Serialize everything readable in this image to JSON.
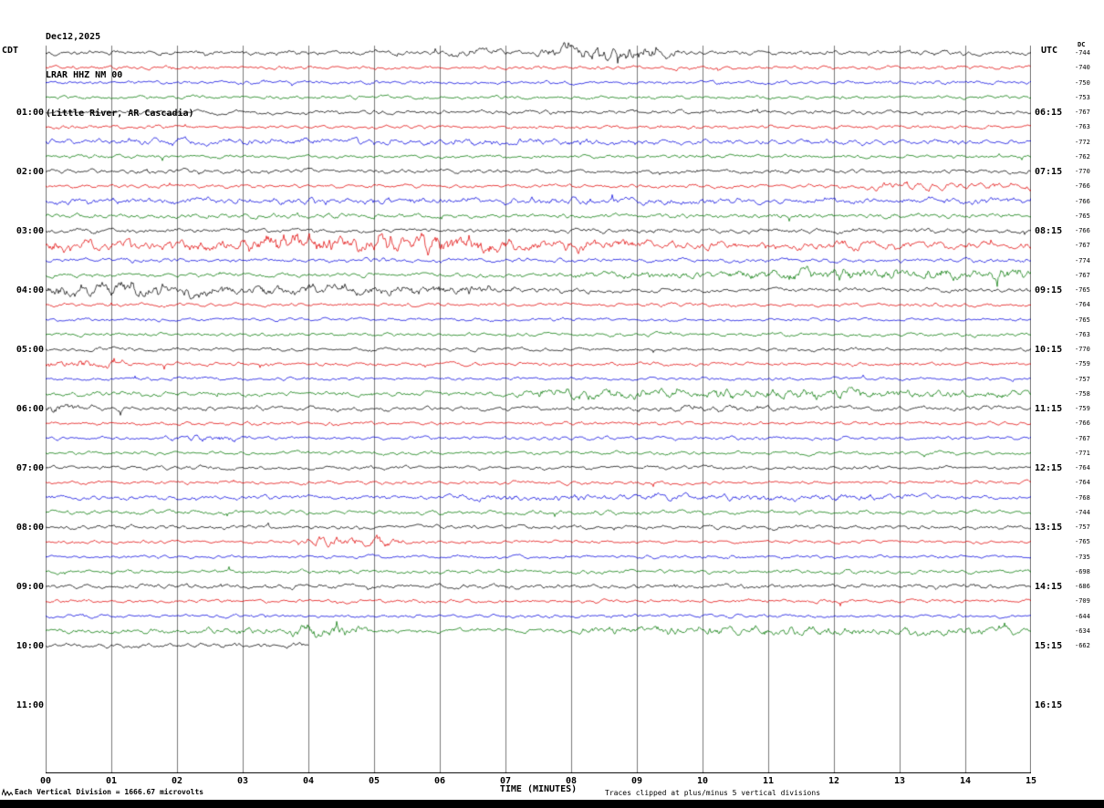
{
  "header": {
    "date": "Dec12,2025",
    "station": "LRAR HHZ NM 00",
    "location": "(Little River, AR Cascadia)"
  },
  "axes": {
    "left_label": "CDT",
    "right_label": "UTC",
    "dc_header": "DC",
    "left_times": [
      "01:00",
      "02:00",
      "03:00",
      "04:00",
      "05:00",
      "06:00",
      "07:00",
      "08:00",
      "09:00",
      "10:00",
      "11:00"
    ],
    "right_times": [
      "06:15",
      "07:15",
      "08:15",
      "09:15",
      "10:15",
      "11:15",
      "12:15",
      "13:15",
      "14:15",
      "15:15",
      "16:15"
    ],
    "x_ticks": [
      "00",
      "01",
      "02",
      "03",
      "04",
      "05",
      "06",
      "07",
      "08",
      "09",
      "10",
      "11",
      "12",
      "13",
      "14",
      "15"
    ],
    "x_axis_title": "TIME (MINUTES)"
  },
  "footer": {
    "scale_note": "Each Vertical Division = 1666.67 microvolts",
    "clip_note": "Traces clipped at plus/minus 5 vertical divisions"
  },
  "chart_data": {
    "type": "line",
    "subtype": "helicorder-seismogram",
    "title": "LRAR HHZ NM 00 (Little River, AR Cascadia) Dec12,2025",
    "xlabel": "TIME (MINUTES)",
    "x_range_minutes": [
      0,
      15
    ],
    "minutes_per_line": 15,
    "grid": true,
    "palette": {
      "k": "#000000",
      "r": "#e00000",
      "b": "#0000dd",
      "g": "#007700"
    },
    "traces": [
      {
        "cdt": "00:00",
        "color": "k",
        "dc": -744,
        "amp": 1.3,
        "bursts": [
          [
            6.3,
            6.7,
            2.2
          ],
          [
            7.9,
            9.3,
            4.5
          ]
        ]
      },
      {
        "cdt": "00:15",
        "color": "r",
        "dc": -740,
        "amp": 1.0
      },
      {
        "cdt": "00:30",
        "color": "b",
        "dc": -750,
        "amp": 1.0
      },
      {
        "cdt": "00:45",
        "color": "g",
        "dc": -753,
        "amp": 1.0
      },
      {
        "cdt": "01:00",
        "color": "k",
        "dc": -767,
        "amp": 1.1
      },
      {
        "cdt": "01:15",
        "color": "r",
        "dc": -763,
        "amp": 1.0
      },
      {
        "cdt": "01:30",
        "color": "b",
        "dc": -772,
        "amp": 1.5,
        "bursts": [
          [
            1,
            8.5,
            1.9
          ]
        ]
      },
      {
        "cdt": "01:45",
        "color": "g",
        "dc": -762,
        "amp": 1.0
      },
      {
        "cdt": "02:00",
        "color": "k",
        "dc": -770,
        "amp": 1.2
      },
      {
        "cdt": "02:15",
        "color": "r",
        "dc": -766,
        "amp": 1.0,
        "bursts": [
          [
            12.5,
            15,
            1.9
          ]
        ]
      },
      {
        "cdt": "02:30",
        "color": "b",
        "dc": -766,
        "amp": 1.7,
        "bursts": [
          [
            0,
            9,
            1.9
          ]
        ]
      },
      {
        "cdt": "02:45",
        "color": "g",
        "dc": -765,
        "amp": 1.3
      },
      {
        "cdt": "03:00",
        "color": "k",
        "dc": -766,
        "amp": 1.3
      },
      {
        "cdt": "03:15",
        "color": "r",
        "dc": -767,
        "amp": 2.0,
        "bursts": [
          [
            0,
            3.4,
            3.2
          ],
          [
            3.4,
            6.6,
            5.5
          ],
          [
            6.6,
            8.8,
            3.2
          ],
          [
            8.8,
            13.5,
            2.2
          ]
        ]
      },
      {
        "cdt": "03:30",
        "color": "b",
        "dc": -774,
        "amp": 1.2
      },
      {
        "cdt": "03:45",
        "color": "g",
        "dc": -767,
        "amp": 1.2,
        "bursts": [
          [
            8,
            10.5,
            2.2
          ],
          [
            10.5,
            14.8,
            3.4
          ]
        ]
      },
      {
        "cdt": "04:00",
        "color": "k",
        "dc": -765,
        "amp": 1.2,
        "bursts": [
          [
            0,
            2.5,
            3.8
          ],
          [
            2.5,
            6.8,
            3.0
          ],
          [
            6.8,
            8,
            1.8
          ]
        ]
      },
      {
        "cdt": "04:15",
        "color": "r",
        "dc": -764,
        "amp": 1.0
      },
      {
        "cdt": "04:30",
        "color": "b",
        "dc": -765,
        "amp": 0.9
      },
      {
        "cdt": "04:45",
        "color": "g",
        "dc": -763,
        "amp": 1.0
      },
      {
        "cdt": "05:00",
        "color": "k",
        "dc": -770,
        "amp": 1.0
      },
      {
        "cdt": "05:15",
        "color": "r",
        "dc": -759,
        "amp": 1.0,
        "bursts": [
          [
            0,
            0.9,
            2.6
          ]
        ]
      },
      {
        "cdt": "05:30",
        "color": "b",
        "dc": -757,
        "amp": 0.9
      },
      {
        "cdt": "05:45",
        "color": "g",
        "dc": -758,
        "amp": 1.3,
        "bursts": [
          [
            7.5,
            12.5,
            3.1
          ],
          [
            12.5,
            15,
            2.2
          ]
        ]
      },
      {
        "cdt": "06:00",
        "color": "k",
        "dc": -759,
        "amp": 1.2,
        "bursts": [
          [
            0,
            0.4,
            2.4
          ],
          [
            8.8,
            11,
            1.6
          ]
        ]
      },
      {
        "cdt": "06:15",
        "color": "r",
        "dc": -766,
        "amp": 1.0
      },
      {
        "cdt": "06:30",
        "color": "b",
        "dc": -767,
        "amp": 1.0,
        "bursts": [
          [
            2.2,
            2.7,
            2.2
          ]
        ]
      },
      {
        "cdt": "06:45",
        "color": "g",
        "dc": -771,
        "amp": 1.0
      },
      {
        "cdt": "07:00",
        "color": "k",
        "dc": -764,
        "amp": 1.0
      },
      {
        "cdt": "07:15",
        "color": "r",
        "dc": -764,
        "amp": 1.0
      },
      {
        "cdt": "07:30",
        "color": "b",
        "dc": -768,
        "amp": 1.2,
        "bursts": [
          [
            6.5,
            13,
            1.8
          ]
        ]
      },
      {
        "cdt": "07:45",
        "color": "g",
        "dc": -744,
        "amp": 1.2
      },
      {
        "cdt": "08:00",
        "color": "k",
        "dc": -757,
        "amp": 1.1
      },
      {
        "cdt": "08:15",
        "color": "r",
        "dc": -765,
        "amp": 0.9,
        "bursts": [
          [
            4.2,
            5.1,
            3.6
          ]
        ]
      },
      {
        "cdt": "08:30",
        "color": "b",
        "dc": -735,
        "amp": 0.9
      },
      {
        "cdt": "08:45",
        "color": "g",
        "dc": -698,
        "amp": 1.1
      },
      {
        "cdt": "09:00",
        "color": "k",
        "dc": -686,
        "amp": 1.2
      },
      {
        "cdt": "09:15",
        "color": "r",
        "dc": -709,
        "amp": 1.0
      },
      {
        "cdt": "09:30",
        "color": "b",
        "dc": -644,
        "amp": 0.9
      },
      {
        "cdt": "09:45",
        "color": "g",
        "dc": -634,
        "amp": 1.4,
        "bursts": [
          [
            2.5,
            4,
            1.8
          ],
          [
            4.1,
            4.45,
            5.0
          ],
          [
            8.5,
            13,
            2.3
          ],
          [
            13,
            14.6,
            2.6
          ]
        ]
      },
      {
        "cdt": "10:00",
        "color": "k",
        "dc": -662,
        "amp": 1.3,
        "minutes": 4
      }
    ]
  }
}
